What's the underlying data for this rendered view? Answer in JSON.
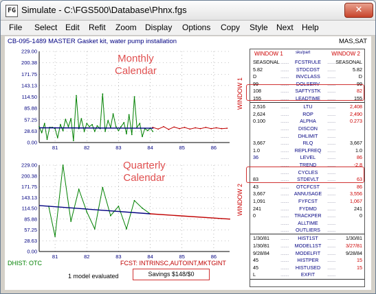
{
  "window": {
    "title": "Simulate - C:\\FGS500\\Database\\Phnx.fgs",
    "app_icon": "FG",
    "close_label": "✕"
  },
  "menu": [
    "File",
    "Select",
    "Edit",
    "Refit",
    "Zoom",
    "Display",
    "Options",
    "Copy",
    "Style",
    "Next",
    "Help"
  ],
  "header": {
    "item": "CB-095-1489 MASTER Gasket kit, water pump installation",
    "right": "MAS,SAT"
  },
  "charts": {
    "y_ticks": [
      "229.00",
      "200.38",
      "171.75",
      "143.13",
      "114.50",
      "85.88",
      "57.25",
      "28.63",
      "0.00"
    ],
    "x_ticks": [
      "81",
      "82",
      "83",
      "84",
      "85",
      "86"
    ],
    "top_label": "Monthly\nCalendar",
    "bottom_label": "Quarterly\nCalendar",
    "side_top": "WINDOW 1",
    "side_bottom": "WINDOW 2"
  },
  "chart_data": [
    {
      "type": "line",
      "title": "Monthly Calendar",
      "xlim": [
        80.5,
        86.5
      ],
      "ylim": [
        0,
        229
      ],
      "series": [
        {
          "name": "",
          "color": "#008000",
          "x": [
            80.5,
            80.58,
            80.67,
            80.75,
            80.83,
            80.92,
            81.0,
            81.08,
            81.17,
            81.25,
            81.33,
            81.42,
            81.5,
            81.58,
            81.67,
            81.75,
            81.83,
            81.92,
            82.0,
            82.08,
            82.17,
            82.25,
            82.33,
            82.42,
            82.5,
            82.58,
            82.67,
            82.75,
            82.83,
            82.92,
            83.0,
            83.08,
            83.17,
            83.25,
            83.33,
            83.42,
            83.5,
            83.58,
            83.67,
            83.75,
            83.83,
            83.92,
            84.0,
            84.08
          ],
          "values": [
            40,
            25,
            48,
            8,
            38,
            38,
            35,
            12,
            45,
            30,
            58,
            40,
            60,
            5,
            118,
            35,
            60,
            28,
            48,
            40,
            45,
            28,
            42,
            35,
            122,
            28,
            55,
            38,
            72,
            40,
            30,
            40,
            50,
            22,
            70,
            20,
            115,
            38,
            48,
            15,
            35,
            30,
            36,
            28
          ]
        },
        {
          "name": "",
          "color": "#c00000",
          "x": [
            84.08,
            84.25,
            84.42,
            84.58,
            84.75,
            84.92,
            85.08,
            85.25,
            85.42,
            85.58,
            85.75,
            85.92,
            86.08,
            86.25,
            86.42
          ],
          "values": [
            38,
            34,
            40,
            33,
            39,
            35,
            38,
            34,
            37,
            35,
            38,
            35,
            37,
            35,
            36
          ]
        },
        {
          "name": "",
          "color": "#000080",
          "x": [
            80.5,
            84.1
          ],
          "values": [
            37,
            36
          ]
        }
      ]
    },
    {
      "type": "line",
      "title": "Quarterly Calendar",
      "xlim": [
        80.5,
        86.5
      ],
      "ylim": [
        0,
        229
      ],
      "series": [
        {
          "name": "",
          "color": "#008000",
          "x": [
            80.8,
            81.0,
            81.25,
            81.5,
            81.75,
            82.0,
            82.25,
            82.5,
            82.75,
            83.0,
            83.25,
            83.5,
            83.75,
            84.0
          ],
          "values": [
            120,
            40,
            229,
            80,
            165,
            105,
            60,
            170,
            95,
            120,
            60,
            135,
            115,
            100
          ]
        },
        {
          "name": "",
          "color": "#000080",
          "x": [
            80.5,
            84.0
          ],
          "values": [
            122,
            100
          ]
        },
        {
          "name": "",
          "color": "#c00000",
          "x": [
            84.0,
            86.5
          ],
          "values": [
            100,
            86
          ]
        }
      ]
    }
  ],
  "footer": {
    "dhist": "DHIST: OTC",
    "fcst": "FCST: INTRINSC,AUTOINT,MKTGINT",
    "evaluated": "1 model evaluated",
    "savings": "Savings $148/$0"
  },
  "panel": {
    "head_left": "WINDOW 1",
    "head_mid": "sku/part",
    "head_right": "WINDOW 2",
    "rows": [
      {
        "l": "SEASONAL",
        "m": "FCSTRULE",
        "r": "SEASONAL"
      },
      {
        "l": "5.82",
        "m": "STDCOST",
        "r": "5.82"
      },
      {
        "l": "D",
        "m": "INVCLASS",
        "r": "D"
      },
      {
        "l": "99",
        "m": "DOLSERV",
        "r": "99"
      },
      {
        "l": "108",
        "m": "SAFTYSTK",
        "r": "82"
      },
      {
        "l": "155",
        "m": "LEADTIME",
        "r": "155"
      },
      {
        "l": "2,516",
        "m": "LTU",
        "r": "2,408"
      },
      {
        "l": "2,624",
        "m": "ROP",
        "r": "2,490"
      },
      {
        "l": "0.100",
        "m": "ALPHA",
        "r": "0.273"
      },
      {
        "l": "",
        "m": "DISCON",
        "r": ""
      },
      {
        "l": "",
        "m": "DHLIMIT",
        "r": ""
      },
      {
        "l": "3,667",
        "m": "RLQ",
        "r": "3,667"
      },
      {
        "l": "1.0",
        "m": "REPLFREQ",
        "r": "1.0"
      },
      {
        "l": "36",
        "m": "LEVEL",
        "r": "86"
      },
      {
        "l": "",
        "m": "TREND",
        "r": "-2.8"
      },
      {
        "l": "",
        "m": "CYCLES",
        "r": ""
      },
      {
        "l": "83",
        "m": "STDEVLT",
        "r": "63"
      },
      {
        "l": "43",
        "m": "OTCFCST",
        "r": "86"
      },
      {
        "l": "3,667",
        "m": "ANNUSAGE",
        "r": "3,556"
      },
      {
        "l": "1,091",
        "m": "FYFCST",
        "r": "1,067"
      },
      {
        "l": "241",
        "m": "FYDMD",
        "r": "241"
      },
      {
        "l": "0",
        "m": "TRACKPER",
        "r": "0"
      },
      {
        "l": "",
        "m": "ALLTIME",
        "r": ""
      },
      {
        "l": "",
        "m": "OUTLIERS",
        "r": ""
      },
      {
        "l": "1/30/81",
        "m": "HIST1ST",
        "r": "1/30/81"
      },
      {
        "l": "1/30/81",
        "m": "MODEL1ST",
        "r": "3/27/81"
      },
      {
        "l": "9/28/84",
        "m": "MODELFIT",
        "r": "9/28/84"
      },
      {
        "l": "45",
        "m": "HISTPER",
        "r": "15"
      },
      {
        "l": "45",
        "m": "HISTUSED",
        "r": "15"
      },
      {
        "l": "L",
        "m": "EXFIT",
        "r": ""
      }
    ],
    "red_right": [
      4,
      6,
      7,
      8,
      13,
      14,
      16,
      17,
      18,
      19,
      25,
      27,
      28
    ],
    "blue_left": [
      13,
      14
    ]
  },
  "colors": {
    "history": "#008000",
    "forecast": "#c00000",
    "fit": "#000080",
    "annotation": "#e05050"
  }
}
